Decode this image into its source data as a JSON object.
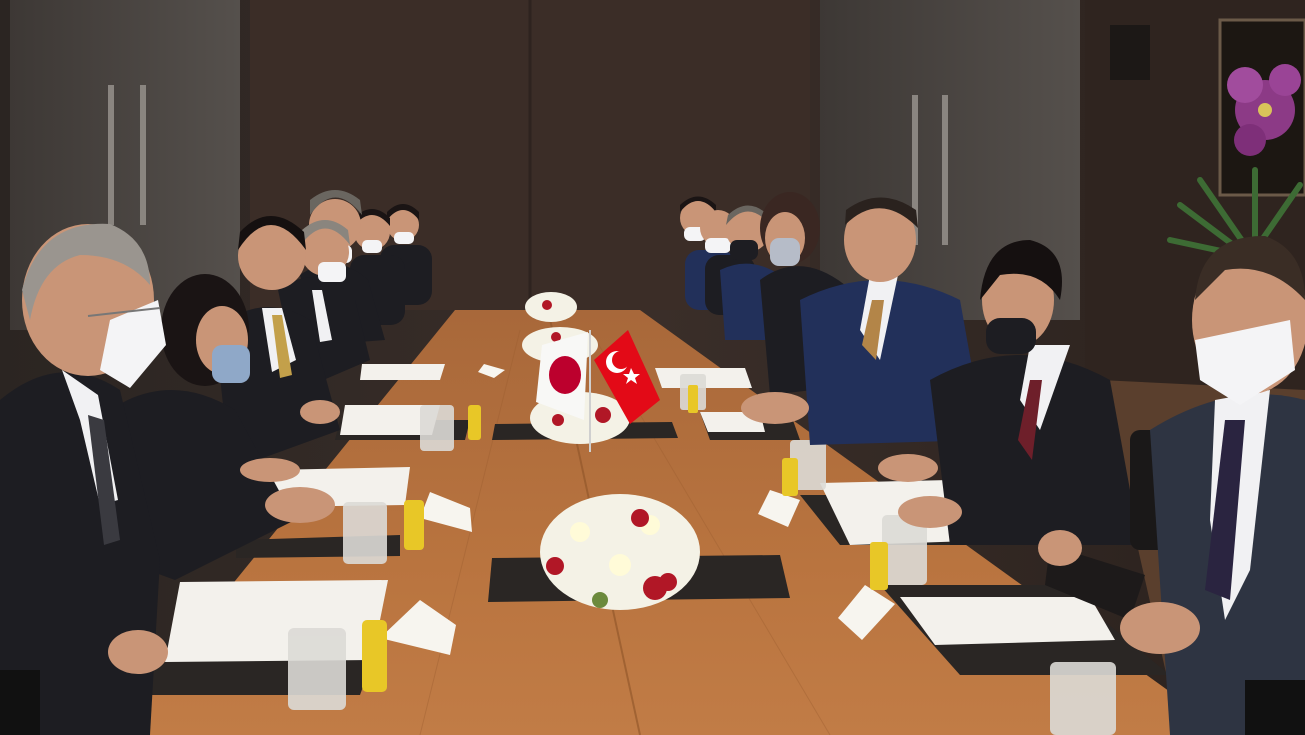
{
  "scene": {
    "kind": "photograph",
    "colors": {
      "wall": "#3a2e29",
      "wall_dark": "#2a211d",
      "door": "#4a4441",
      "table": "#b9743f",
      "table_dark": "#8e5428",
      "suit_dark": "#1d1d22",
      "suit_navy": "#22305a",
      "shirt": "#f1f1f3",
      "mask": "#f4f4f6",
      "skin": "#c99577",
      "paper": "#f3f1ec",
      "flower_white": "#f4f2e6",
      "flower_red": "#b11726",
      "flag_japan_red": "#bc002d",
      "flag_turkey_red": "#e30a17"
    },
    "icons": [
      "japan-flag-icon",
      "turkey-flag-icon"
    ]
  }
}
